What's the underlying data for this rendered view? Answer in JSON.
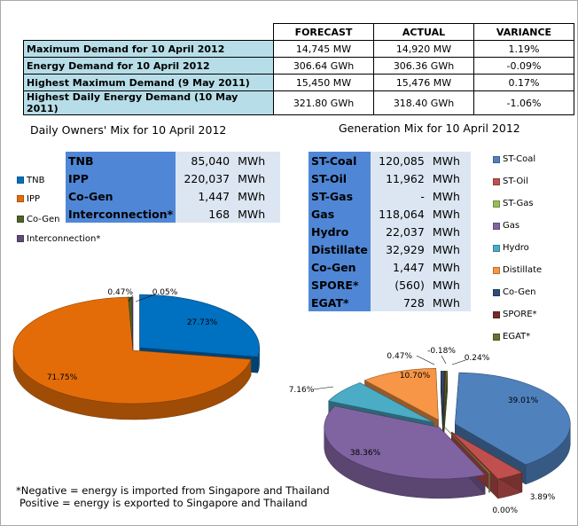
{
  "summary": {
    "headers": [
      "FORECAST",
      "ACTUAL",
      "VARIANCE"
    ],
    "rows": [
      {
        "label": "Maximum Demand for 10 April 2012",
        "forecast": "14,745  MW",
        "actual": "14,920  MW",
        "variance": "1.19%"
      },
      {
        "label": "Energy Demand for 10 April 2012",
        "forecast": "306.64  GWh",
        "actual": "306.36  GWh",
        "variance": "-0.09%"
      },
      {
        "label": "Highest Maximum Demand (9 May 2011)",
        "forecast": "15,450  MW",
        "actual": "15,476  MW",
        "variance": "0.17%"
      },
      {
        "label": "Highest Daily Energy Demand (10 May 2011)",
        "forecast": "321.80  GWh",
        "actual": "318.40  GWh",
        "variance": "-1.06%"
      }
    ]
  },
  "owners": {
    "title": "Daily Owners' Mix for 10 April 2012",
    "table": [
      {
        "label": "TNB",
        "value": "85,040",
        "unit": "MWh"
      },
      {
        "label": "IPP",
        "value": "220,037",
        "unit": "MWh"
      },
      {
        "label": "Co-Gen",
        "value": "1,447",
        "unit": "MWh"
      },
      {
        "label": "Interconnection*",
        "value": "168",
        "unit": "MWh"
      }
    ]
  },
  "generation": {
    "title": "Generation Mix for 10 April 2012",
    "table": [
      {
        "label": "ST-Coal",
        "value": "120,085",
        "unit": "MWh"
      },
      {
        "label": "ST-Oil",
        "value": "11,962",
        "unit": "MWh"
      },
      {
        "label": "ST-Gas",
        "value": "-",
        "unit": "MWh"
      },
      {
        "label": "Gas",
        "value": "118,064",
        "unit": "MWh"
      },
      {
        "label": "Hydro",
        "value": "22,037",
        "unit": "MWh"
      },
      {
        "label": "Distillate",
        "value": "32,929",
        "unit": "MWh"
      },
      {
        "label": "Co-Gen",
        "value": "1,447",
        "unit": "MWh"
      },
      {
        "label": "SPORE*",
        "value": "(560)",
        "unit": "MWh"
      },
      {
        "label": "EGAT*",
        "value": "728",
        "unit": "MWh"
      }
    ]
  },
  "chart_data": [
    {
      "type": "pie",
      "title": "Daily Owners' Mix for 10 April 2012",
      "categories": [
        "TNB",
        "IPP",
        "Co-Gen",
        "Interconnection*"
      ],
      "values": [
        27.73,
        71.75,
        0.47,
        0.05
      ],
      "data_labels": [
        "27.73%",
        "71.75%",
        "0.47%",
        "0.05%"
      ],
      "colors": [
        "#0070c0",
        "#e36c09",
        "#4f6228",
        "#604a7b"
      ],
      "legend_position": "left"
    },
    {
      "type": "pie",
      "title": "Generation Mix for 10 April 2012",
      "categories": [
        "ST-Coal",
        "ST-Oil",
        "ST-Gas",
        "Gas",
        "Hydro",
        "Distillate",
        "Co-Gen",
        "SPORE*",
        "EGAT*"
      ],
      "values": [
        39.01,
        3.89,
        0.0,
        38.36,
        7.16,
        10.7,
        0.47,
        -0.18,
        0.24
      ],
      "data_labels": [
        "39.01%",
        "3.89%",
        "0.00%",
        "38.36%",
        "7.16%",
        "10.70%",
        "0.47%",
        "-0.18%",
        "0.24%"
      ],
      "colors": [
        "#4f81bd",
        "#c0504d",
        "#9bbb59",
        "#8064a2",
        "#4bacc6",
        "#f79646",
        "#2c4d75",
        "#772c2a",
        "#5f7530"
      ],
      "legend_position": "right"
    }
  ],
  "footnote": {
    "line1": "*Negative = energy is imported from Singapore and Thailand",
    "line2": "Positive = energy is exported to Singapore and Thailand"
  }
}
